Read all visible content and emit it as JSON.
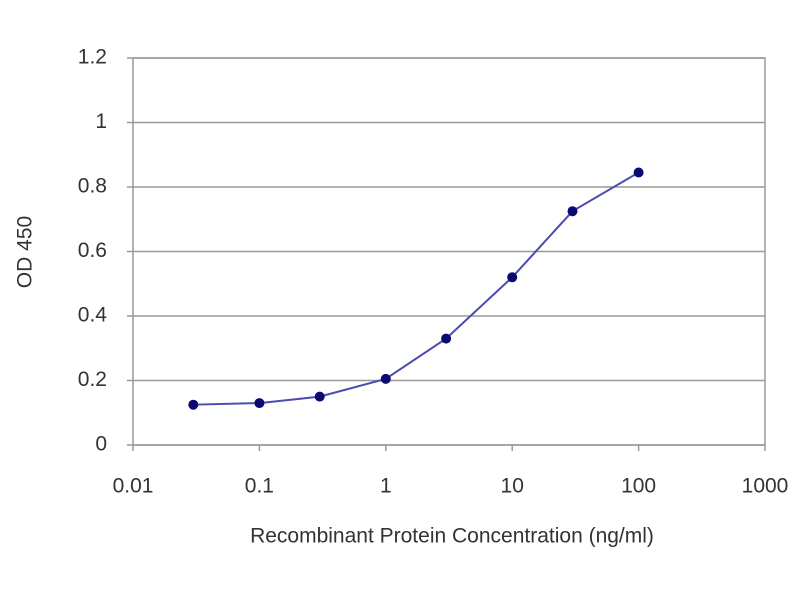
{
  "chart_data": {
    "type": "line",
    "x_label": "Recombinant Protein Concentration (ng/ml)",
    "y_label": "OD 450",
    "x": [
      0.03,
      0.1,
      0.3,
      1,
      3,
      10,
      30,
      100
    ],
    "values": [
      0.125,
      0.13,
      0.15,
      0.205,
      0.33,
      0.52,
      0.725,
      0.845
    ],
    "line_color": "#4b4bb0",
    "marker_color": "#0a0a70",
    "xscale": "log",
    "xlim": [
      0.01,
      1000
    ],
    "xticks": [
      0.01,
      0.1,
      1,
      10,
      100,
      1000
    ],
    "ylim": [
      0,
      1.2
    ],
    "yticks": [
      0,
      0.2,
      0.4,
      0.6,
      0.8,
      1,
      1.2
    ],
    "grid": true
  }
}
